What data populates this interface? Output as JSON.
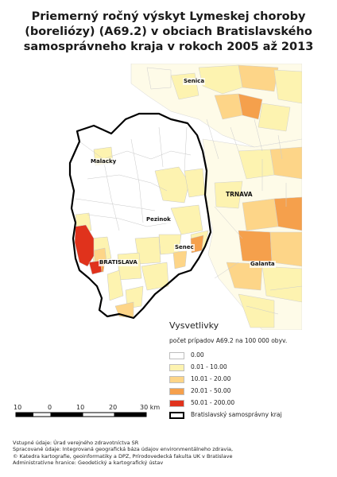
{
  "title": {
    "line1": "Priemerný ročný výskyt Lymeskej choroby",
    "line2": "(boreliózy) (A69.2) v obciach Bratislavského",
    "line3": "samosprávneho kraja v rokoch 2005 až 2013"
  },
  "map": {
    "places": {
      "senica": "Senica",
      "malacky": "Malacky",
      "pezinok": "Pezinok",
      "senec": "Senec",
      "bratislava": "BRATISLAVA",
      "galanta": "Galanta"
    },
    "regions": {
      "trnava": "TRNAVA"
    },
    "colors": {
      "class_0": "#ffffff",
      "class_1": "#fdf3b0",
      "class_2": "#fdd588",
      "class_3": "#f5a04c",
      "class_4": "#e0321c",
      "border": "#000000",
      "commune_line": "#c8c8c8"
    }
  },
  "legend": {
    "title": "Vysvetlivky",
    "subtitle": "počet prípadov A69.2 na 100 000 obyv.",
    "items": [
      {
        "label": "0.00",
        "color": "#ffffff"
      },
      {
        "label": "0.01 - 10.00",
        "color": "#fdf3b0"
      },
      {
        "label": "10.01 - 20.00",
        "color": "#fdd588"
      },
      {
        "label": "20.01 - 50.00",
        "color": "#f5a04c"
      },
      {
        "label": "50.01 - 200.00",
        "color": "#e0321c"
      }
    ],
    "border_label": "Bratislavský samosprávny kraj"
  },
  "scale": {
    "labels": [
      "10",
      "0",
      "10",
      "20",
      "30 km"
    ]
  },
  "sources": {
    "line1": "Vstupné údaje: Úrad verejného zdravotníctva SR",
    "line2": "Spracované údaje: Integrovaná geografická báza údajov environmentálneho zdravia,",
    "line3": "© Katedra kartografie, geoinformatiky a DPZ, Prírodovedecká fakulta UK v Bratislave",
    "line4": "Administratívne hranice: Geodetický a kartografický ústav"
  }
}
